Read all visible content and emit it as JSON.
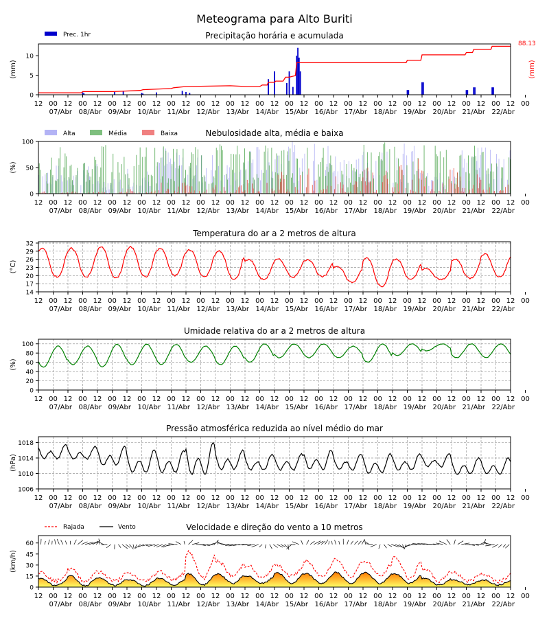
{
  "title": "Meteograma para Alto Buriti",
  "x_axis": {
    "hour_labels": [
      "12",
      "00",
      "12",
      "00",
      "12",
      "00",
      "12",
      "00",
      "12",
      "00",
      "12",
      "00",
      "12",
      "00",
      "12",
      "00",
      "12",
      "00",
      "12",
      "00",
      "12",
      "00",
      "12",
      "00",
      "12",
      "00",
      "12",
      "00",
      "12",
      "00",
      "12",
      "00",
      "12",
      "00"
    ],
    "date_labels": [
      "07/Abr",
      "08/Abr",
      "09/Abr",
      "10/Abr",
      "11/Abr",
      "12/Abr",
      "13/Abr",
      "14/Abr",
      "15/Abr",
      "16/Abr",
      "17/Abr",
      "18/Abr",
      "19/Abr",
      "20/Abr",
      "21/Abr",
      "22/Abr"
    ]
  },
  "chart_data": [
    {
      "type": "bar",
      "title": "Precipitação horária e acumulada",
      "ylabel": "(mm)",
      "ylabel_right": "(mm)",
      "ylim": [
        0,
        13
      ],
      "yticks": [
        0,
        5,
        10
      ],
      "legend": [
        "Prec. 1hr"
      ],
      "legend_position": "top-left",
      "colors": {
        "hourly": "#0000cc",
        "accum": "#ff0000"
      },
      "accumulated_label": "88.13",
      "series": [
        {
          "name": "Prec. 1hr",
          "type": "bar",
          "x": [
            "08/Abr 00h",
            "08/Abr 01h",
            "09/Abr 02h",
            "09/Abr 09h",
            "10/Abr 00h",
            "10/Abr 01h",
            "10/Abr 12h",
            "11/Abr 09h",
            "11/Abr 12h",
            "11/Abr 15h",
            "14/Abr 07h",
            "14/Abr 12h",
            "14/Abr 22h",
            "15/Abr 00h",
            "15/Abr 03h",
            "15/Abr 06h",
            "15/Abr 07h",
            "15/Abr 08h",
            "15/Abr 09h",
            "19/Abr 00h",
            "19/Abr 01h",
            "19/Abr 12h",
            "19/Abr 13h",
            "21/Abr 00h",
            "21/Abr 01h",
            "21/Abr 06h",
            "21/Abr 07h",
            "21/Abr 21h",
            "21/Abr 22h"
          ],
          "values": [
            0.6,
            0.4,
            0.7,
            0.9,
            0.5,
            0.3,
            0.6,
            1.0,
            0.7,
            0.5,
            4.0,
            6.0,
            3.0,
            6.0,
            2.0,
            10.0,
            12.0,
            9.5,
            6.0,
            1.2,
            1.2,
            3.2,
            3.2,
            1.2,
            1.2,
            1.9,
            1.9,
            1.9,
            1.9
          ]
        },
        {
          "name": "Acumulada",
          "type": "step",
          "x": [
            "06/Abr 12h",
            "07/Abr 23h",
            "08/Abr 00h",
            "09/Abr 01h",
            "09/Abr 23h",
            "10/Abr 01h",
            "11/Abr 00h",
            "11/Abr 02h",
            "11/Abr 12h",
            "13/Abr 00h",
            "13/Abr 13h",
            "14/Abr 00h",
            "14/Abr 02h",
            "14/Abr 06h",
            "14/Abr 07h",
            "14/Abr 12h",
            "14/Abr 13h",
            "14/Abr 19h",
            "14/Abr 21h",
            "15/Abr 00h",
            "15/Abr 05h",
            "15/Abr 06h",
            "18/Abr 23h",
            "19/Abr 00h",
            "19/Abr 11h",
            "19/Abr 12h",
            "20/Abr 23h",
            "21/Abr 00h",
            "21/Abr 05h",
            "21/Abr 06h",
            "21/Abr 20h",
            "21/Abr 21h",
            "22/Abr 12h"
          ],
          "values": [
            0.5,
            0.5,
            0.8,
            0.8,
            1.1,
            1.3,
            1.6,
            1.8,
            2.1,
            2.3,
            2.1,
            2.1,
            2.5,
            2.5,
            3.2,
            3.2,
            3.5,
            3.5,
            4.5,
            4.5,
            4.9,
            8.2,
            8.2,
            8.8,
            8.8,
            10.2,
            10.2,
            10.8,
            10.8,
            11.6,
            11.6,
            12.4,
            12.4
          ]
        }
      ]
    },
    {
      "type": "bar",
      "title": "Nebulosidade alta, média e baixa",
      "ylabel": "(%)",
      "ylim": [
        0,
        100
      ],
      "yticks": [
        0,
        50,
        100
      ],
      "legend": [
        "Alta",
        "Média",
        "Baixa"
      ],
      "legend_position": "top-left",
      "colors": {
        "Alta": "#b3b3f5",
        "Média": "#3c9c3c",
        "Baixa": "#e33b2e"
      },
      "series": [
        {
          "name": "Alta",
          "x_days": [
            "07/Abr",
            "08/Abr",
            "09/Abr",
            "10/Abr",
            "11/Abr",
            "12/Abr",
            "13/Abr",
            "14/Abr",
            "15/Abr",
            "16/Abr",
            "17/Abr",
            "18/Abr",
            "19/Abr",
            "20/Abr",
            "21/Abr",
            "22/Abr"
          ],
          "values": [
            55,
            60,
            30,
            55,
            95,
            80,
            60,
            95,
            100,
            100,
            80,
            90,
            100,
            40,
            95,
            90
          ]
        },
        {
          "name": "Média",
          "x_days": [
            "07/Abr",
            "08/Abr",
            "09/Abr",
            "10/Abr",
            "11/Abr",
            "12/Abr",
            "13/Abr",
            "14/Abr",
            "15/Abr",
            "16/Abr",
            "17/Abr",
            "18/Abr",
            "19/Abr",
            "20/Abr",
            "21/Abr",
            "22/Abr"
          ],
          "values": [
            95,
            75,
            95,
            95,
            95,
            90,
            95,
            95,
            100,
            90,
            60,
            100,
            100,
            95,
            95,
            95
          ]
        },
        {
          "name": "Baixa",
          "x_days": [
            "07/Abr",
            "08/Abr",
            "09/Abr",
            "10/Abr",
            "11/Abr",
            "12/Abr",
            "13/Abr",
            "14/Abr",
            "15/Abr",
            "16/Abr",
            "17/Abr",
            "18/Abr",
            "19/Abr",
            "20/Abr",
            "21/Abr",
            "22/Abr"
          ],
          "values": [
            5,
            5,
            5,
            10,
            25,
            20,
            20,
            40,
            65,
            55,
            40,
            70,
            80,
            60,
            50,
            20
          ]
        }
      ]
    },
    {
      "type": "line",
      "title": "Temperatura do ar a 2 metros de altura",
      "ylabel": "(°C)",
      "ylim": [
        14,
        32.5
      ],
      "yticks": [
        14,
        17,
        20,
        23,
        26,
        29,
        32
      ],
      "colors": {
        "line": "#ff0000"
      },
      "series": [
        {
          "name": "Temperatura",
          "daily_min_max": [
            [
              19.5,
              30.0
            ],
            [
              19.5,
              30.0
            ],
            [
              19.0,
              30.5
            ],
            [
              19.5,
              30.5
            ],
            [
              20.0,
              30.0
            ],
            [
              19.5,
              29.5
            ],
            [
              18.5,
              29.0
            ],
            [
              18.5,
              26.0
            ],
            [
              19.5,
              26.0
            ],
            [
              19.5,
              26.0
            ],
            [
              17.5,
              23.5
            ],
            [
              16.0,
              26.5
            ],
            [
              18.5,
              26.0
            ],
            [
              18.5,
              22.5
            ],
            [
              19.0,
              26.0
            ],
            [
              19.5,
              28.0
            ]
          ]
        }
      ]
    },
    {
      "type": "line",
      "title": "Umidade relativa do ar a 2 metros de altura",
      "ylabel": "(%)",
      "ylim": [
        0,
        110
      ],
      "yticks": [
        0,
        20,
        40,
        60,
        80,
        100
      ],
      "colors": {
        "line": "#008000"
      },
      "series": [
        {
          "name": "Umidade",
          "daily_min_max": [
            [
              50,
              95
            ],
            [
              55,
              95
            ],
            [
              50,
              99
            ],
            [
              55,
              99
            ],
            [
              55,
              99
            ],
            [
              60,
              95
            ],
            [
              55,
              95
            ],
            [
              60,
              100
            ],
            [
              70,
              100
            ],
            [
              70,
              100
            ],
            [
              70,
              95
            ],
            [
              60,
              100
            ],
            [
              75,
              100
            ],
            [
              85,
              100
            ],
            [
              70,
              100
            ],
            [
              70,
              100
            ]
          ]
        }
      ]
    },
    {
      "type": "line",
      "title": "Pressão atmosférica reduzida ao nível médio do mar",
      "ylabel": "(hPa)",
      "ylim": [
        1006,
        1019.5
      ],
      "yticks": [
        1006,
        1010,
        1014,
        1018
      ],
      "colors": {
        "line": "#000000"
      },
      "series": [
        {
          "name": "Pressão",
          "daily_min_max": [
            [
              1013,
              1017.5
            ],
            [
              1013,
              1017
            ],
            [
              1011,
              1017
            ],
            [
              1009,
              1016
            ],
            [
              1009,
              1016
            ],
            [
              1008,
              1018
            ],
            [
              1010,
              1016
            ],
            [
              1010,
              1015
            ],
            [
              1010,
              1015
            ],
            [
              1010,
              1016
            ],
            [
              1010,
              1015
            ],
            [
              1009,
              1015
            ],
            [
              1010,
              1015
            ],
            [
              1011,
              1015
            ],
            [
              1009,
              1014
            ],
            [
              1009,
              1014
            ]
          ]
        }
      ]
    },
    {
      "type": "line",
      "title": "Velocidade e direção do vento a 10 metros",
      "ylabel": "(km/h)",
      "ylim": [
        0,
        70
      ],
      "yticks": [
        0,
        15,
        30,
        45,
        60
      ],
      "legend": [
        "Rajada",
        "Vento"
      ],
      "legend_position": "top-left",
      "colors": {
        "Rajada": "#ff0000",
        "Vento": "#000000",
        "fill_top": "#ff7700",
        "fill_bottom": "#ffff66"
      },
      "series": [
        {
          "name": "Vento",
          "daily_min_max": [
            [
              2,
              12
            ],
            [
              2,
              15
            ],
            [
              2,
              12
            ],
            [
              2,
              10
            ],
            [
              3,
              12
            ],
            [
              3,
              18
            ],
            [
              5,
              18
            ],
            [
              5,
              15
            ],
            [
              5,
              20
            ],
            [
              5,
              18
            ],
            [
              5,
              20
            ],
            [
              5,
              20
            ],
            [
              5,
              18
            ],
            [
              3,
              12
            ],
            [
              3,
              10
            ],
            [
              3,
              10
            ]
          ]
        },
        {
          "name": "Rajada",
          "daily_min_max": [
            [
              8,
              20
            ],
            [
              8,
              25
            ],
            [
              8,
              20
            ],
            [
              8,
              18
            ],
            [
              10,
              22
            ],
            [
              12,
              48
            ],
            [
              15,
              35
            ],
            [
              12,
              30
            ],
            [
              15,
              30
            ],
            [
              15,
              35
            ],
            [
              15,
              38
            ],
            [
              15,
              35
            ],
            [
              12,
              40
            ],
            [
              8,
              25
            ],
            [
              8,
              20
            ],
            [
              8,
              18
            ]
          ]
        }
      ]
    }
  ]
}
